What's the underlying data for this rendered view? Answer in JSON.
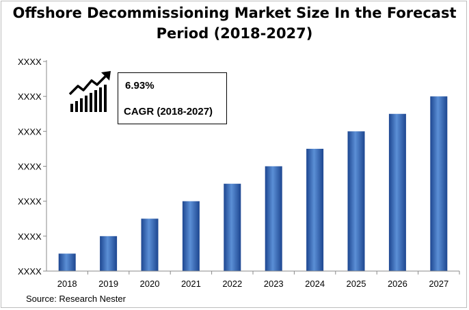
{
  "title_line1": "Offshore Decommissioning Market Size In the Forecast",
  "title_line2": "Period (2018-2027)",
  "source": "Source: Research Nester",
  "cagr": {
    "value": "6.93%",
    "label": "CAGR (2018-2027)"
  },
  "icons": {
    "growth": "growth-chart-arrow-icon"
  },
  "colors": {
    "bar_light": "#5b8fd6",
    "bar_mid": "#2f66bf",
    "bar_dark": "#1d4690",
    "axis": "#888888"
  },
  "chart_data": {
    "type": "bar",
    "categories": [
      "2018",
      "2019",
      "2020",
      "2021",
      "2022",
      "2023",
      "2024",
      "2025",
      "2026",
      "2027"
    ],
    "values": [
      0.5,
      1.0,
      1.5,
      2.0,
      2.5,
      3.0,
      3.5,
      4.0,
      4.5,
      5.0
    ],
    "ylim": [
      0,
      6
    ],
    "ytick_labels": [
      "XXXX",
      "XXXX",
      "XXXX",
      "XXXX",
      "XXXX",
      "XXXX",
      "XXXX"
    ],
    "grid": false,
    "legend": "none"
  }
}
